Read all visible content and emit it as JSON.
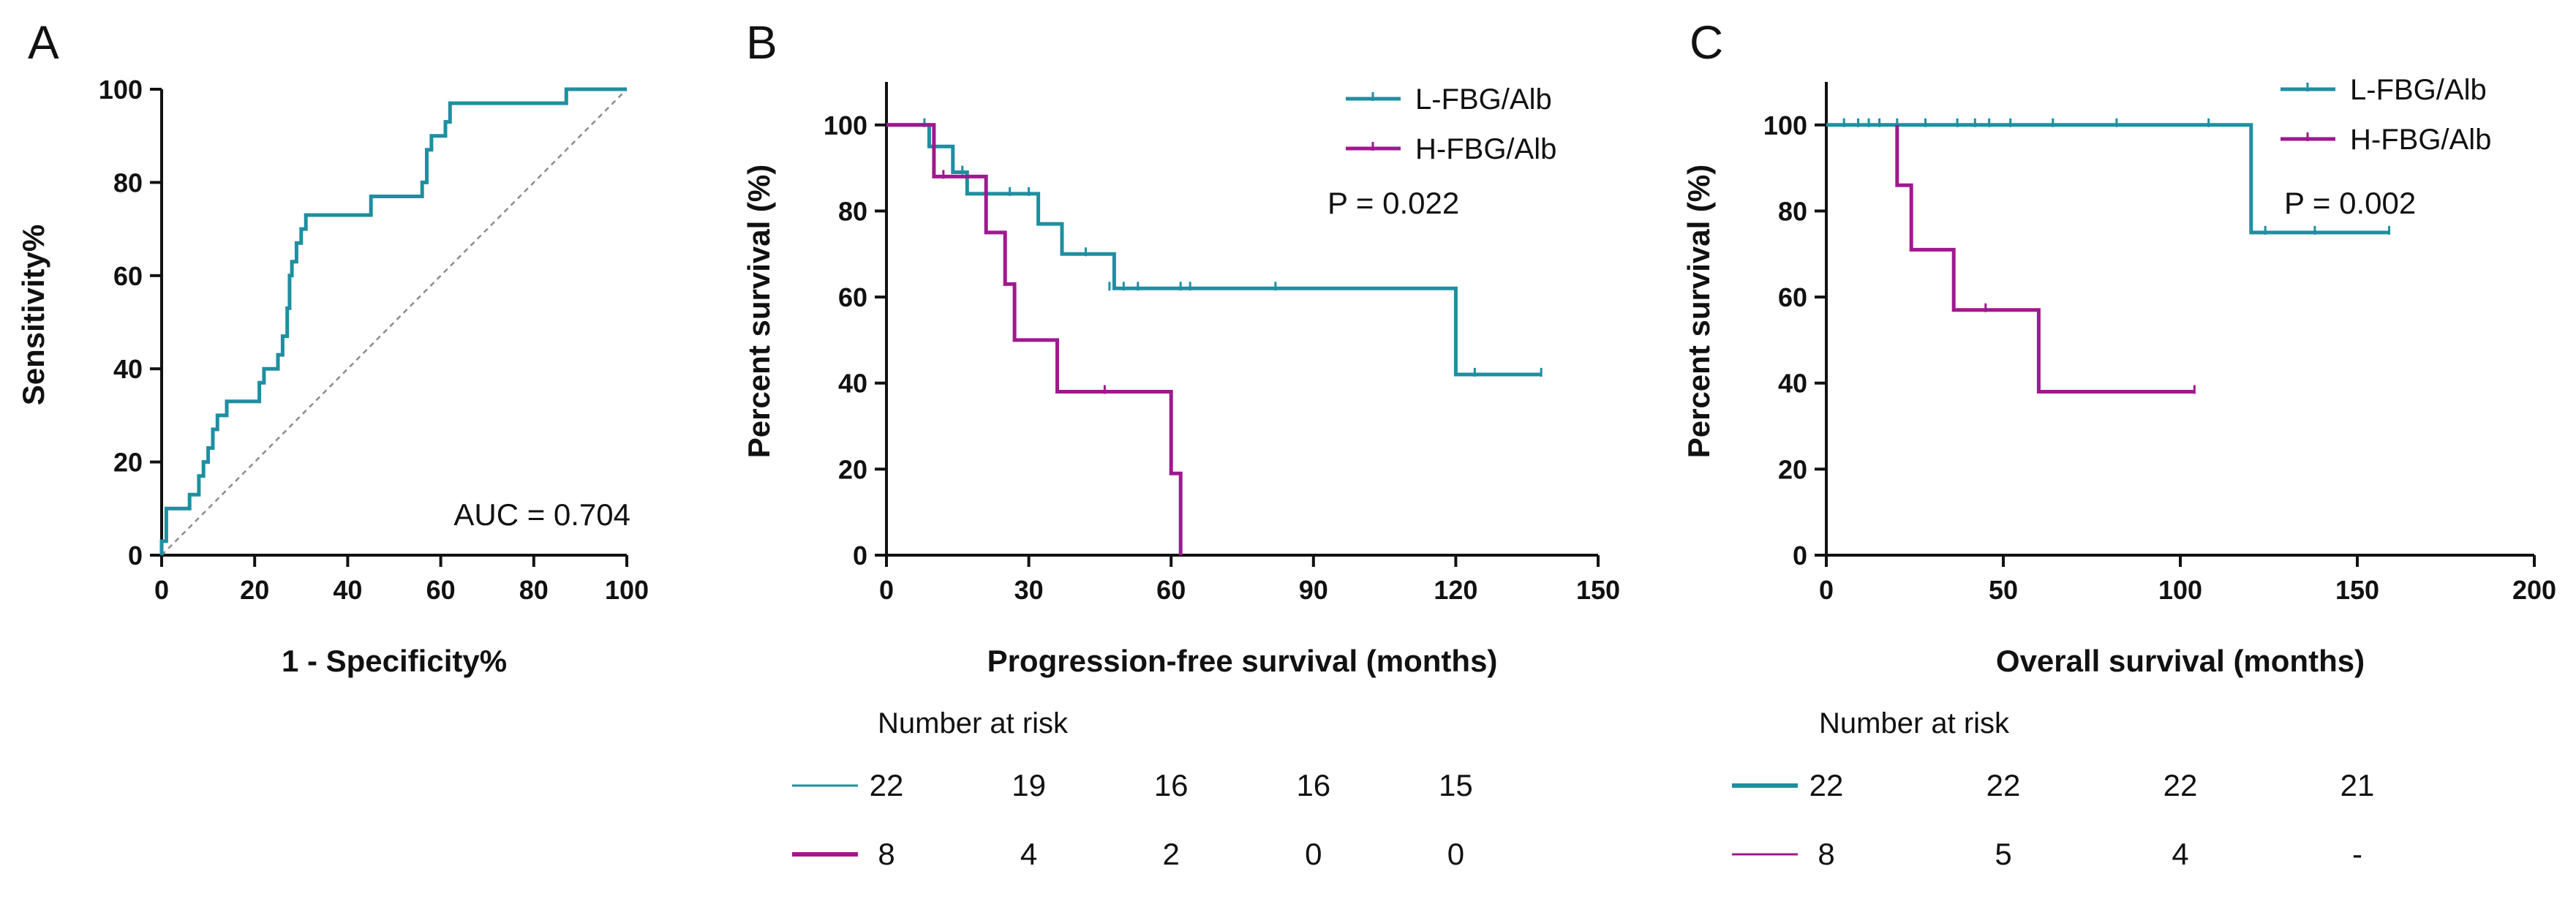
{
  "colors": {
    "teal": "#1E8FA0",
    "purple": "#A0188E",
    "diagonal": "#8C8C8C",
    "axis": "#111111"
  },
  "chart_data": [
    {
      "panel": "A",
      "type": "line",
      "title": "",
      "xlabel": "1 - Specificity%",
      "ylabel": "Sensitivity%",
      "xlim": [
        0,
        100
      ],
      "ylim": [
        0,
        100
      ],
      "xticks": [
        0,
        20,
        40,
        60,
        80,
        100
      ],
      "yticks": [
        0,
        20,
        40,
        60,
        80,
        100
      ],
      "annotation": "AUC = 0.704",
      "reference_line": [
        [
          0,
          0
        ],
        [
          100,
          100
        ]
      ],
      "series": [
        {
          "name": "ROC",
          "color": "teal",
          "points": [
            [
              0,
              0
            ],
            [
              0,
              3
            ],
            [
              1,
              3
            ],
            [
              1,
              10
            ],
            [
              6,
              10
            ],
            [
              6,
              13
            ],
            [
              8,
              13
            ],
            [
              8,
              17
            ],
            [
              9,
              17
            ],
            [
              9,
              20
            ],
            [
              10,
              20
            ],
            [
              10,
              23
            ],
            [
              11,
              23
            ],
            [
              11,
              27
            ],
            [
              12,
              27
            ],
            [
              12,
              30
            ],
            [
              14,
              30
            ],
            [
              14,
              33
            ],
            [
              21,
              33
            ],
            [
              21,
              37
            ],
            [
              22,
              37
            ],
            [
              22,
              40
            ],
            [
              25,
              40
            ],
            [
              25,
              43
            ],
            [
              26,
              43
            ],
            [
              26,
              47
            ],
            [
              27,
              47
            ],
            [
              27,
              53
            ],
            [
              27.5,
              53
            ],
            [
              27.5,
              60
            ],
            [
              28,
              60
            ],
            [
              28,
              63
            ],
            [
              29,
              63
            ],
            [
              29,
              67
            ],
            [
              30,
              67
            ],
            [
              30,
              70
            ],
            [
              31,
              70
            ],
            [
              31,
              73
            ],
            [
              45,
              73
            ],
            [
              45,
              77
            ],
            [
              56,
              77
            ],
            [
              56,
              80
            ],
            [
              57,
              80
            ],
            [
              57,
              87
            ],
            [
              58,
              87
            ],
            [
              58,
              90
            ],
            [
              61,
              90
            ],
            [
              61,
              93
            ],
            [
              62,
              93
            ],
            [
              62,
              97
            ],
            [
              87,
              97
            ],
            [
              87,
              100
            ],
            [
              100,
              100
            ]
          ]
        }
      ]
    },
    {
      "panel": "B",
      "type": "line",
      "title": "",
      "xlabel": "Progression-free survival (months)",
      "ylabel": "Percent survival (%)",
      "xlim": [
        0,
        150
      ],
      "ylim": [
        0,
        110
      ],
      "xticks": [
        0,
        30,
        60,
        90,
        120,
        150
      ],
      "yticks": [
        0,
        20,
        40,
        60,
        80,
        100
      ],
      "annotation": "P = 0.022",
      "legend_position": "top-right",
      "series": [
        {
          "name": "L-FBG/Alb",
          "color": "teal",
          "steps": [
            [
              0,
              100
            ],
            [
              9,
              100
            ],
            [
              9,
              95
            ],
            [
              14,
              95
            ],
            [
              14,
              89
            ],
            [
              17,
              89
            ],
            [
              17,
              84
            ],
            [
              32,
              84
            ],
            [
              32,
              77
            ],
            [
              37,
              77
            ],
            [
              37,
              70
            ],
            [
              48,
              70
            ],
            [
              48,
              62
            ],
            [
              120,
              62
            ],
            [
              120,
              42
            ],
            [
              138,
              42
            ]
          ],
          "censors": [
            [
              8,
              100
            ],
            [
              16,
              89
            ],
            [
              26,
              84
            ],
            [
              30,
              84
            ],
            [
              42,
              70
            ],
            [
              47,
              62
            ],
            [
              50,
              62
            ],
            [
              53,
              62
            ],
            [
              62,
              62
            ],
            [
              64,
              62
            ],
            [
              82,
              62
            ],
            [
              124,
              42
            ],
            [
              138,
              42
            ]
          ]
        },
        {
          "name": "H-FBG/Alb",
          "color": "purple",
          "steps": [
            [
              0,
              100
            ],
            [
              10,
              100
            ],
            [
              10,
              88
            ],
            [
              21,
              88
            ],
            [
              21,
              75
            ],
            [
              25,
              75
            ],
            [
              25,
              63
            ],
            [
              27,
              63
            ],
            [
              27,
              50
            ],
            [
              36,
              50
            ],
            [
              36,
              38
            ],
            [
              60,
              38
            ],
            [
              60,
              19
            ],
            [
              62,
              19
            ],
            [
              62,
              0
            ]
          ],
          "censors": [
            [
              12,
              88
            ],
            [
              46,
              38
            ]
          ]
        }
      ],
      "risk_table": {
        "title": "Number at risk",
        "times": [
          0,
          30,
          60,
          90,
          120
        ],
        "rows": [
          {
            "color": "teal",
            "values": [
              "22",
              "19",
              "16",
              "16",
              "15"
            ]
          },
          {
            "color": "purple",
            "values": [
              "8",
              "4",
              "2",
              "0",
              "0"
            ]
          }
        ]
      }
    },
    {
      "panel": "C",
      "type": "line",
      "title": "",
      "xlabel": "Overall survival (months)",
      "ylabel": "Percent survival (%)",
      "xlim": [
        0,
        200
      ],
      "ylim": [
        0,
        110
      ],
      "xticks": [
        0,
        50,
        100,
        150,
        200
      ],
      "yticks": [
        0,
        20,
        40,
        60,
        80,
        100
      ],
      "annotation": "P = 0.002",
      "legend_position": "top-right",
      "series": [
        {
          "name": "L-FBG/Alb",
          "color": "teal",
          "steps": [
            [
              0,
              100
            ],
            [
              120,
              100
            ],
            [
              120,
              75
            ],
            [
              159,
              75
            ]
          ],
          "censors": [
            [
              5,
              100
            ],
            [
              9,
              100
            ],
            [
              12,
              100
            ],
            [
              15,
              100
            ],
            [
              20,
              100
            ],
            [
              28,
              100
            ],
            [
              37,
              100
            ],
            [
              42,
              100
            ],
            [
              46,
              100
            ],
            [
              52,
              100
            ],
            [
              64,
              100
            ],
            [
              82,
              100
            ],
            [
              108,
              100
            ],
            [
              124,
              75
            ],
            [
              138,
              75
            ],
            [
              159,
              75
            ]
          ]
        },
        {
          "name": "H-FBG/Alb",
          "color": "purple",
          "steps": [
            [
              20,
              100
            ],
            [
              20,
              86
            ],
            [
              24,
              86
            ],
            [
              24,
              71
            ],
            [
              36,
              71
            ],
            [
              36,
              57
            ],
            [
              60,
              57
            ],
            [
              60,
              38
            ],
            [
              104,
              38
            ]
          ],
          "censors": [
            [
              45,
              57
            ],
            [
              104,
              38
            ]
          ]
        }
      ],
      "risk_table": {
        "title": "Number at risk",
        "times": [
          0,
          50,
          100,
          150
        ],
        "rows": [
          {
            "color": "teal",
            "values": [
              "22",
              "22",
              "22",
              "21"
            ]
          },
          {
            "color": "purple",
            "values": [
              "8",
              "5",
              "4",
              "-"
            ]
          }
        ]
      }
    }
  ]
}
